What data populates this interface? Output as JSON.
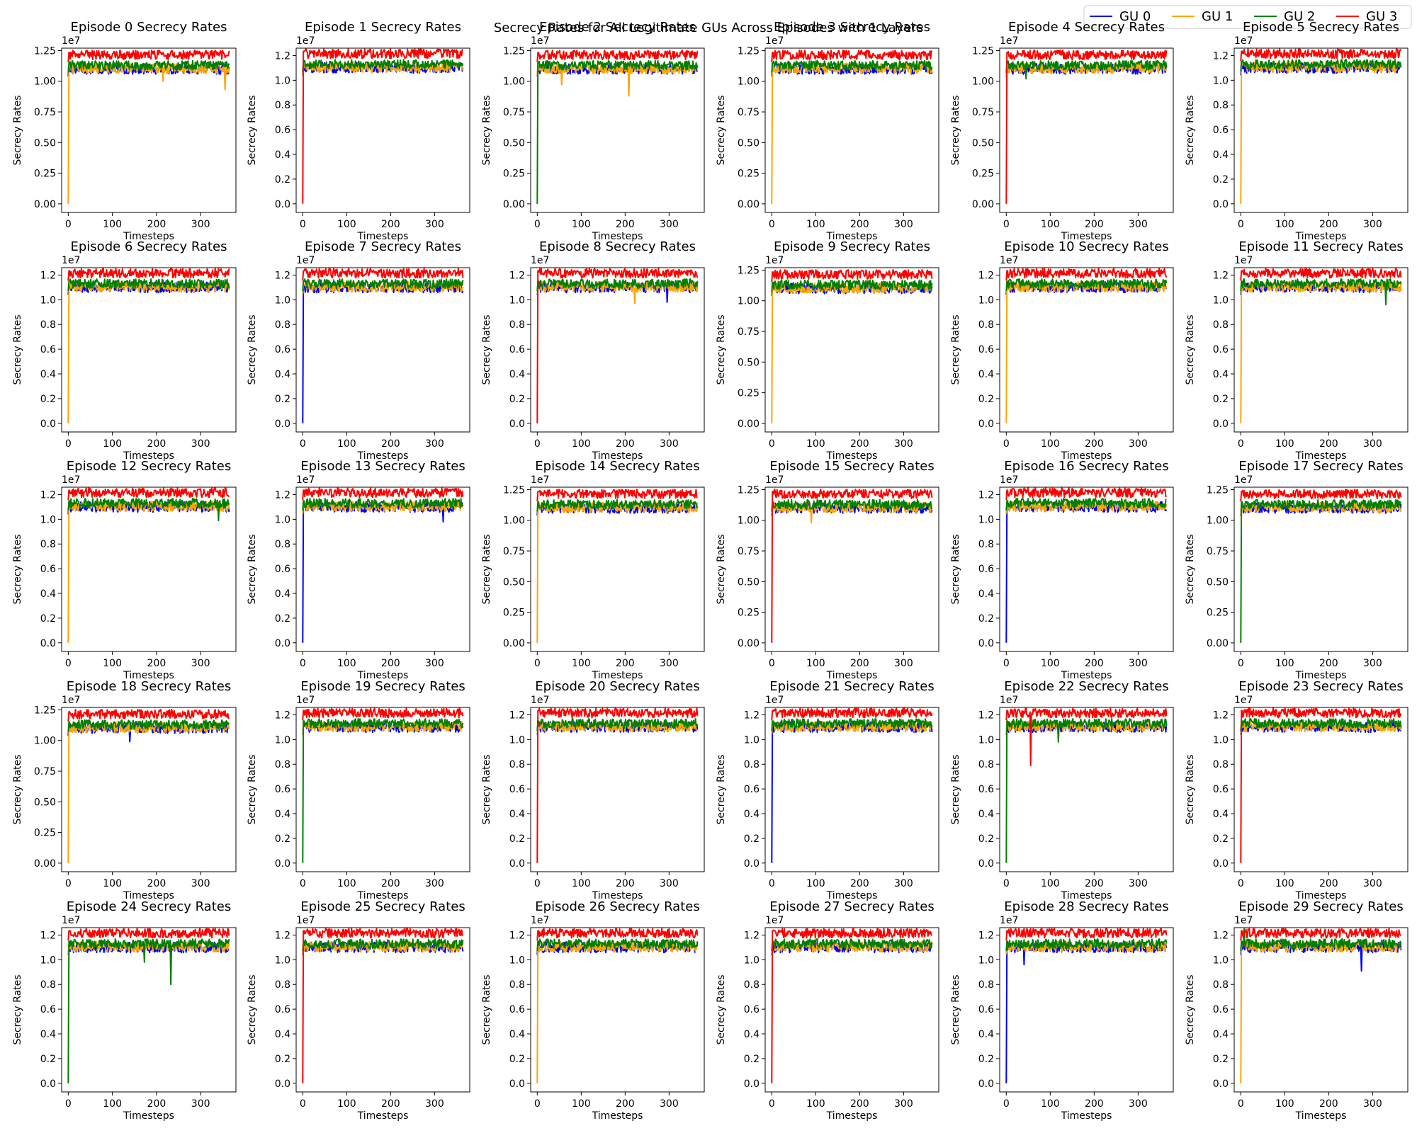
{
  "chart_data": {
    "type": "line",
    "title": "Secrecy Rates for All Legitimate GUs Across Episodes with 1 Layers",
    "layout": "5x6 grid of subplots",
    "legend": {
      "placement": "top-right",
      "columns": 4
    },
    "series": [
      {
        "name": "GU 0",
        "color": "#0000ff",
        "steady_mean": 11000000
      },
      {
        "name": "GU 1",
        "color": "#ffa500",
        "steady_mean": 11050000
      },
      {
        "name": "GU 2",
        "color": "#008000",
        "steady_mean": 11300000
      },
      {
        "name": "GU 3",
        "color": "#ff0000",
        "steady_mean": 12150000
      }
    ],
    "xlabel": "Timesteps",
    "ylabel": "Secrecy Rates",
    "x_range": [
      0,
      365
    ],
    "x_ticks": [
      0,
      100,
      200,
      300
    ],
    "offset_text": "1e7",
    "panels": [
      {
        "title": "Episode 0 Secrecy Rates",
        "ylim": [
          0,
          12700000
        ],
        "yticks": [
          "0.00",
          "0.25",
          "0.50",
          "0.75",
          "1.00",
          "1.25"
        ],
        "init_zero": [
          "GU 1"
        ],
        "dips": [
          {
            "series": "GU 1",
            "x": 215,
            "y": 10000000
          },
          {
            "series": "GU 1",
            "x": 355,
            "y": 9300000
          }
        ]
      },
      {
        "title": "Episode 1 Secrecy Rates",
        "ylim": [
          0,
          12600000
        ],
        "yticks": [
          "0.0",
          "0.2",
          "0.4",
          "0.6",
          "0.8",
          "1.0",
          "1.2"
        ],
        "init_zero": [
          "GU 3"
        ],
        "dips": []
      },
      {
        "title": "Episode 2 Secrecy Rates",
        "ylim": [
          0,
          12700000
        ],
        "yticks": [
          "0.00",
          "0.25",
          "0.50",
          "0.75",
          "1.00",
          "1.25"
        ],
        "init_zero": [
          "GU 2"
        ],
        "dips": [
          {
            "series": "GU 1",
            "x": 208,
            "y": 8800000
          },
          {
            "series": "GU 1",
            "x": 55,
            "y": 9700000
          }
        ]
      },
      {
        "title": "Episode 3 Secrecy Rates",
        "ylim": [
          0,
          12700000
        ],
        "yticks": [
          "0.00",
          "0.25",
          "0.50",
          "0.75",
          "1.00",
          "1.25"
        ],
        "init_zero": [
          "GU 1"
        ],
        "dips": []
      },
      {
        "title": "Episode 4 Secrecy Rates",
        "ylim": [
          0,
          12700000
        ],
        "yticks": [
          "0.00",
          "0.25",
          "0.50",
          "0.75",
          "1.00",
          "1.25"
        ],
        "init_zero": [
          "GU 3"
        ],
        "dips": [
          {
            "series": "GU 2",
            "x": 45,
            "y": 10200000
          }
        ]
      },
      {
        "title": "Episode 5 Secrecy Rates",
        "ylim": [
          0,
          12600000
        ],
        "yticks": [
          "0.0",
          "0.2",
          "0.4",
          "0.6",
          "0.8",
          "1.0",
          "1.2"
        ],
        "init_zero": [
          "GU 1"
        ],
        "dips": []
      },
      {
        "title": "Episode 6 Secrecy Rates",
        "ylim": [
          0,
          12600000
        ],
        "yticks": [
          "0.0",
          "0.2",
          "0.4",
          "0.6",
          "0.8",
          "1.0",
          "1.2"
        ],
        "init_zero": [
          "GU 1"
        ],
        "dips": []
      },
      {
        "title": "Episode 7 Secrecy Rates",
        "ylim": [
          0,
          12600000
        ],
        "yticks": [
          "0.0",
          "0.2",
          "0.4",
          "0.6",
          "0.8",
          "1.0",
          "1.2"
        ],
        "init_zero": [
          "GU 0"
        ],
        "dips": []
      },
      {
        "title": "Episode 8 Secrecy Rates",
        "ylim": [
          0,
          12600000
        ],
        "yticks": [
          "0.0",
          "0.2",
          "0.4",
          "0.6",
          "0.8",
          "1.0",
          "1.2"
        ],
        "init_zero": [
          "GU 3"
        ],
        "dips": [
          {
            "series": "GU 1",
            "x": 222,
            "y": 9700000
          },
          {
            "series": "GU 0",
            "x": 295,
            "y": 9800000
          }
        ]
      },
      {
        "title": "Episode 9 Secrecy Rates",
        "ylim": [
          0,
          12700000
        ],
        "yticks": [
          "0.00",
          "0.25",
          "0.50",
          "0.75",
          "1.00",
          "1.25"
        ],
        "init_zero": [
          "GU 1"
        ],
        "dips": []
      },
      {
        "title": "Episode 10 Secrecy Rates",
        "ylim": [
          0,
          12600000
        ],
        "yticks": [
          "0.0",
          "0.2",
          "0.4",
          "0.6",
          "0.8",
          "1.0",
          "1.2"
        ],
        "init_zero": [
          "GU 1"
        ],
        "dips": []
      },
      {
        "title": "Episode 11 Secrecy Rates",
        "ylim": [
          0,
          12600000
        ],
        "yticks": [
          "0.0",
          "0.2",
          "0.4",
          "0.6",
          "0.8",
          "1.0",
          "1.2"
        ],
        "init_zero": [
          "GU 1"
        ],
        "dips": [
          {
            "series": "GU 2",
            "x": 330,
            "y": 9600000
          }
        ]
      },
      {
        "title": "Episode 12 Secrecy Rates",
        "ylim": [
          0,
          12600000
        ],
        "yticks": [
          "0.0",
          "0.2",
          "0.4",
          "0.6",
          "0.8",
          "1.0",
          "1.2"
        ],
        "init_zero": [
          "GU 1"
        ],
        "dips": [
          {
            "series": "GU 2",
            "x": 340,
            "y": 9900000
          }
        ]
      },
      {
        "title": "Episode 13 Secrecy Rates",
        "ylim": [
          0,
          12600000
        ],
        "yticks": [
          "0.0",
          "0.2",
          "0.4",
          "0.6",
          "0.8",
          "1.0",
          "1.2"
        ],
        "init_zero": [
          "GU 0"
        ],
        "dips": [
          {
            "series": "GU 0",
            "x": 320,
            "y": 9800000
          }
        ]
      },
      {
        "title": "Episode 14 Secrecy Rates",
        "ylim": [
          0,
          12700000
        ],
        "yticks": [
          "0.00",
          "0.25",
          "0.50",
          "0.75",
          "1.00",
          "1.25"
        ],
        "init_zero": [
          "GU 1"
        ],
        "dips": []
      },
      {
        "title": "Episode 15 Secrecy Rates",
        "ylim": [
          0,
          12700000
        ],
        "yticks": [
          "0.00",
          "0.25",
          "0.50",
          "0.75",
          "1.00",
          "1.25"
        ],
        "init_zero": [
          "GU 3"
        ],
        "dips": [
          {
            "series": "GU 1",
            "x": 90,
            "y": 9800000
          }
        ]
      },
      {
        "title": "Episode 16 Secrecy Rates",
        "ylim": [
          0,
          12600000
        ],
        "yticks": [
          "0.0",
          "0.2",
          "0.4",
          "0.6",
          "0.8",
          "1.0",
          "1.2"
        ],
        "init_zero": [
          "GU 0"
        ],
        "dips": []
      },
      {
        "title": "Episode 17 Secrecy Rates",
        "ylim": [
          0,
          12700000
        ],
        "yticks": [
          "0.00",
          "0.25",
          "0.50",
          "0.75",
          "1.00",
          "1.25"
        ],
        "init_zero": [
          "GU 2"
        ],
        "dips": []
      },
      {
        "title": "Episode 18 Secrecy Rates",
        "ylim": [
          0,
          12700000
        ],
        "yticks": [
          "0.00",
          "0.25",
          "0.50",
          "0.75",
          "1.00",
          "1.25"
        ],
        "init_zero": [
          "GU 1"
        ],
        "dips": [
          {
            "series": "GU 0",
            "x": 140,
            "y": 9900000
          }
        ]
      },
      {
        "title": "Episode 19 Secrecy Rates",
        "ylim": [
          0,
          12600000
        ],
        "yticks": [
          "0.0",
          "0.2",
          "0.4",
          "0.6",
          "0.8",
          "1.0",
          "1.2"
        ],
        "init_zero": [
          "GU 2"
        ],
        "dips": []
      },
      {
        "title": "Episode 20 Secrecy Rates",
        "ylim": [
          0,
          12600000
        ],
        "yticks": [
          "0.0",
          "0.2",
          "0.4",
          "0.6",
          "0.8",
          "1.0",
          "1.2"
        ],
        "init_zero": [
          "GU 3"
        ],
        "dips": []
      },
      {
        "title": "Episode 21 Secrecy Rates",
        "ylim": [
          0,
          12600000
        ],
        "yticks": [
          "0.0",
          "0.2",
          "0.4",
          "0.6",
          "0.8",
          "1.0",
          "1.2"
        ],
        "init_zero": [
          "GU 0"
        ],
        "dips": []
      },
      {
        "title": "Episode 22 Secrecy Rates",
        "ylim": [
          0,
          12600000
        ],
        "yticks": [
          "0.0",
          "0.2",
          "0.4",
          "0.6",
          "0.8",
          "1.0",
          "1.2"
        ],
        "init_zero": [
          "GU 2"
        ],
        "dips": [
          {
            "series": "GU 3",
            "x": 55,
            "y": 7900000
          },
          {
            "series": "GU 2",
            "x": 118,
            "y": 9800000
          }
        ]
      },
      {
        "title": "Episode 23 Secrecy Rates",
        "ylim": [
          0,
          12600000
        ],
        "yticks": [
          "0.0",
          "0.2",
          "0.4",
          "0.6",
          "0.8",
          "1.0",
          "1.2"
        ],
        "init_zero": [
          "GU 3"
        ],
        "dips": []
      },
      {
        "title": "Episode 24 Secrecy Rates",
        "ylim": [
          0,
          12600000
        ],
        "yticks": [
          "0.0",
          "0.2",
          "0.4",
          "0.6",
          "0.8",
          "1.0",
          "1.2"
        ],
        "init_zero": [
          "GU 2"
        ],
        "dips": [
          {
            "series": "GU 2",
            "x": 232,
            "y": 8000000
          },
          {
            "series": "GU 2",
            "x": 172,
            "y": 9800000
          }
        ]
      },
      {
        "title": "Episode 25 Secrecy Rates",
        "ylim": [
          0,
          12600000
        ],
        "yticks": [
          "0.0",
          "0.2",
          "0.4",
          "0.6",
          "0.8",
          "1.0",
          "1.2"
        ],
        "init_zero": [
          "GU 3"
        ],
        "dips": []
      },
      {
        "title": "Episode 26 Secrecy Rates",
        "ylim": [
          0,
          12600000
        ],
        "yticks": [
          "0.0",
          "0.2",
          "0.4",
          "0.6",
          "0.8",
          "1.0",
          "1.2"
        ],
        "init_zero": [
          "GU 1"
        ],
        "dips": []
      },
      {
        "title": "Episode 27 Secrecy Rates",
        "ylim": [
          0,
          12600000
        ],
        "yticks": [
          "0.0",
          "0.2",
          "0.4",
          "0.6",
          "0.8",
          "1.0",
          "1.2"
        ],
        "init_zero": [
          "GU 3"
        ],
        "dips": []
      },
      {
        "title": "Episode 28 Secrecy Rates",
        "ylim": [
          0,
          12600000
        ],
        "yticks": [
          "0.0",
          "0.2",
          "0.4",
          "0.6",
          "0.8",
          "1.0",
          "1.2"
        ],
        "init_zero": [
          "GU 0"
        ],
        "dips": [
          {
            "series": "GU 0",
            "x": 40,
            "y": 9600000
          }
        ]
      },
      {
        "title": "Episode 29 Secrecy Rates",
        "ylim": [
          0,
          12600000
        ],
        "yticks": [
          "0.0",
          "0.2",
          "0.4",
          "0.6",
          "0.8",
          "1.0",
          "1.2"
        ],
        "init_zero": [
          "GU 1"
        ],
        "dips": [
          {
            "series": "GU 0",
            "x": 275,
            "y": 9100000
          },
          {
            "series": "GU 2",
            "x": 8,
            "y": 12500000
          }
        ]
      }
    ]
  }
}
